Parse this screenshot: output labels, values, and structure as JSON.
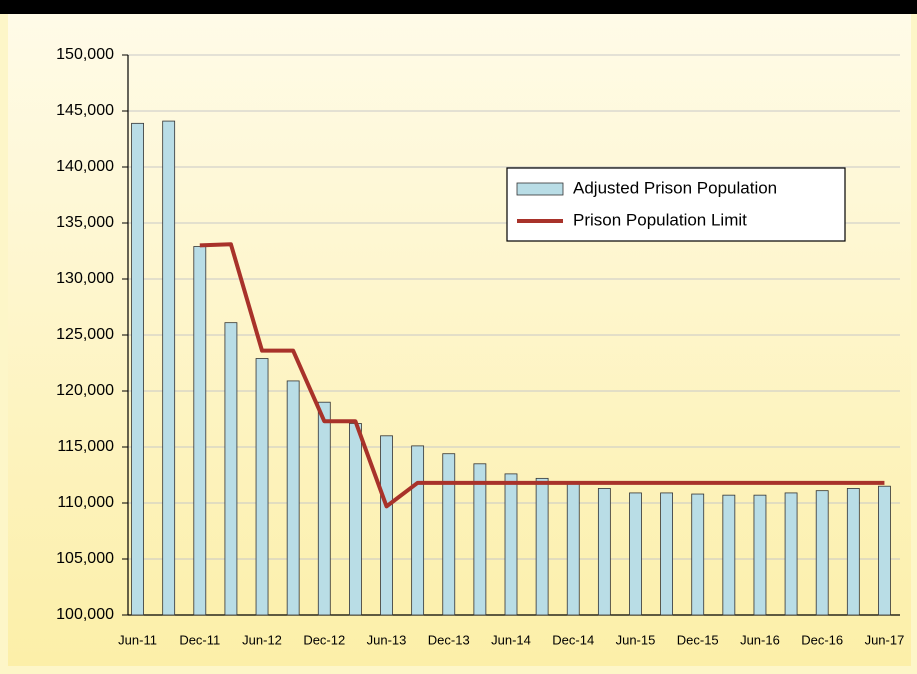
{
  "chart_data": {
    "type": "bar_line",
    "categories": [
      "Jun-11",
      null,
      "Dec-11",
      null,
      "Jun-12",
      null,
      "Dec-12",
      null,
      "Jun-13",
      null,
      "Dec-13",
      null,
      "Jun-14",
      null,
      "Dec-14",
      null,
      "Jun-15",
      null,
      "Dec-15",
      null,
      "Jun-16",
      null,
      "Dec-16",
      null,
      "Jun-17"
    ],
    "series": [
      {
        "name": "Adjusted Prison Population",
        "type": "bar",
        "color": "#b9dde6",
        "values": [
          143900,
          144100,
          132900,
          126100,
          122900,
          120900,
          119000,
          117100,
          116000,
          115100,
          114400,
          113500,
          112600,
          112200,
          111800,
          111300,
          110900,
          110900,
          110800,
          110700,
          110700,
          110900,
          111100,
          111300,
          111500
        ]
      },
      {
        "name": "Prison Population Limit",
        "type": "line",
        "color": "#a8322a",
        "values": [
          null,
          null,
          133000,
          133100,
          123600,
          123600,
          117300,
          117300,
          109700,
          111800,
          111800,
          111800,
          111800,
          111800,
          111800,
          111800,
          111800,
          111800,
          111800,
          111800,
          111800,
          111800,
          111800,
          111800,
          111800
        ]
      }
    ],
    "ylim": [
      100000,
      150000
    ],
    "yticks": [
      {
        "value": 100000,
        "label": "100,000"
      },
      {
        "value": 105000,
        "label": "105,000"
      },
      {
        "value": 110000,
        "label": "110,000"
      },
      {
        "value": 115000,
        "label": "115,000"
      },
      {
        "value": 120000,
        "label": "120,000"
      },
      {
        "value": 125000,
        "label": "125,000"
      },
      {
        "value": 130000,
        "label": "130,000"
      },
      {
        "value": 135000,
        "label": "135,000"
      },
      {
        "value": 140000,
        "label": "140,000"
      },
      {
        "value": 145000,
        "label": "145,000"
      },
      {
        "value": 150000,
        "label": "150,000"
      }
    ],
    "grid": true,
    "legend": "upper right"
  }
}
